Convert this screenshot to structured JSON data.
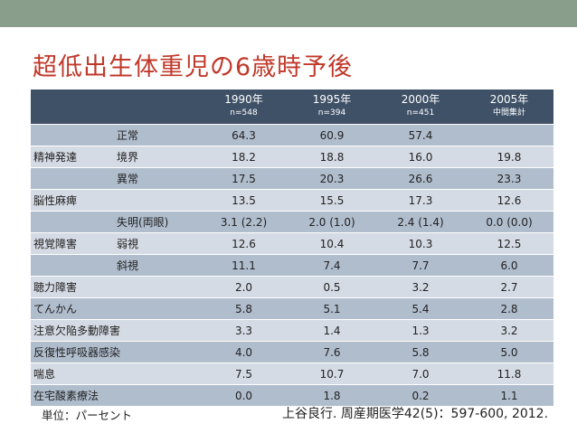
{
  "title": "超低出生体重児の6歳時予後",
  "columns": [
    {
      "year": "1990年",
      "n": "n=548"
    },
    {
      "year": "1995年",
      "n": "n=394"
    },
    {
      "year": "2000年",
      "n": "n=451"
    },
    {
      "year": "2005年",
      "n": "中間集計"
    }
  ],
  "rows": [
    {
      "group": "",
      "sub": "正常",
      "values": [
        "64.3",
        "60.9",
        "57.4",
        ""
      ]
    },
    {
      "group": "精神発達",
      "sub": "境界",
      "values": [
        "18.2",
        "18.8",
        "16.0",
        "19.8"
      ]
    },
    {
      "group": "",
      "sub": "異常",
      "values": [
        "17.5",
        "20.3",
        "26.6",
        "23.3"
      ]
    },
    {
      "label": "脳性麻痺",
      "values": [
        "13.5",
        "15.5",
        "17.3",
        "12.6"
      ]
    },
    {
      "group": "",
      "sub": "失明(両眼)",
      "values": [
        "3.1 (2.2)",
        "2.0 (1.0)",
        "2.4 (1.4)",
        "0.0 (0.0)"
      ]
    },
    {
      "group": "視覚障害",
      "sub": "弱視",
      "values": [
        "12.6",
        "10.4",
        "10.3",
        "12.5"
      ]
    },
    {
      "group": "",
      "sub": "斜視",
      "values": [
        "11.1",
        "7.4",
        "7.7",
        "6.0"
      ]
    },
    {
      "label": "聴力障害",
      "values": [
        "2.0",
        "0.5",
        "3.2",
        "2.7"
      ]
    },
    {
      "label": "てんかん",
      "values": [
        "5.8",
        "5.1",
        "5.4",
        "2.8"
      ]
    },
    {
      "label": "注意欠陥多動障害",
      "values": [
        "3.3",
        "1.4",
        "1.3",
        "3.2"
      ]
    },
    {
      "label": "反復性呼吸器感染",
      "values": [
        "4.0",
        "7.6",
        "5.8",
        "5.0"
      ]
    },
    {
      "label": "喘息",
      "values": [
        "7.5",
        "10.7",
        "7.0",
        "11.8"
      ]
    },
    {
      "label": "在宅酸素療法",
      "values": [
        "0.0",
        "1.8",
        "0.2",
        "1.1"
      ]
    }
  ],
  "footer": {
    "unit": "単位：パーセント",
    "citation": "上谷良行. 周産期医学42(5)：597-600, 2012."
  }
}
